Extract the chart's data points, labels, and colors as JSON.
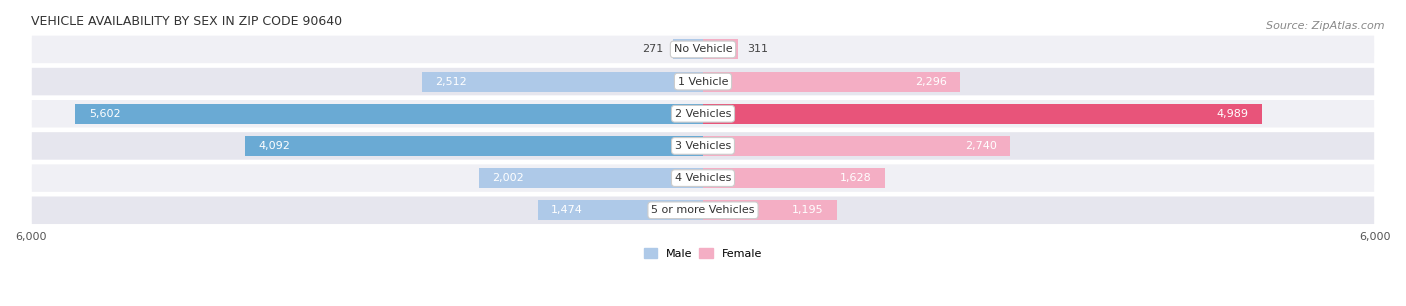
{
  "title": "VEHICLE AVAILABILITY BY SEX IN ZIP CODE 90640",
  "source": "Source: ZipAtlas.com",
  "categories": [
    "No Vehicle",
    "1 Vehicle",
    "2 Vehicles",
    "3 Vehicles",
    "4 Vehicles",
    "5 or more Vehicles"
  ],
  "male_values": [
    271,
    2512,
    5602,
    4092,
    2002,
    1474
  ],
  "female_values": [
    311,
    2296,
    4989,
    2740,
    1628,
    1195
  ],
  "male_color_light": "#aec9e8",
  "male_color_dark": "#6aaad4",
  "female_color_light": "#f4aec4",
  "female_color_dark": "#e8547a",
  "row_bg_odd": "#f0f0f5",
  "row_bg_even": "#e6e6ee",
  "xlim": 6000,
  "bar_height": 0.62,
  "title_fontsize": 9,
  "source_fontsize": 8,
  "tick_fontsize": 8,
  "category_fontsize": 8,
  "label_fontsize": 8
}
